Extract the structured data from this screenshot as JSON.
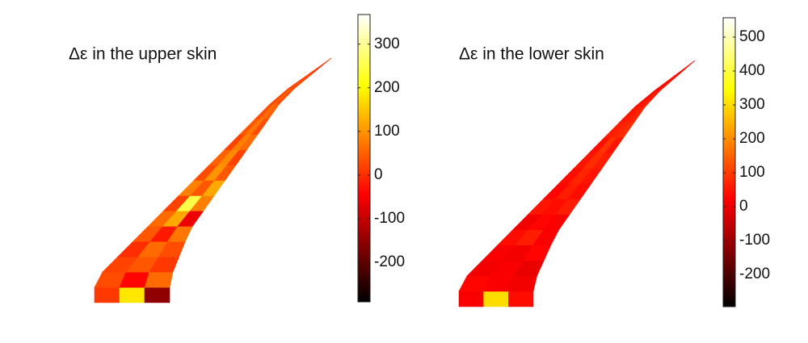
{
  "chart_data": [
    {
      "type": "heatmap",
      "title": "Δε in the upper skin",
      "colormap": "hot",
      "clim": [
        -291,
        368
      ],
      "ticks": [
        -200,
        -100,
        0,
        100,
        200,
        300
      ],
      "z": [
        [
          10,
          180,
          -150
        ],
        [
          30,
          -40,
          60
        ],
        [
          20,
          40,
          10
        ],
        [
          0,
          60,
          30
        ],
        [
          40,
          -20,
          70
        ],
        [
          60,
          120,
          -60
        ],
        [
          20,
          250,
          80
        ],
        [
          80,
          40,
          120
        ],
        [
          30,
          100,
          40
        ],
        [
          50,
          90,
          20
        ],
        [
          20,
          80,
          60
        ],
        [
          40,
          70,
          30
        ],
        [
          30,
          60,
          50
        ],
        [
          20,
          50,
          30
        ],
        [
          10,
          40,
          20
        ],
        [
          0,
          20,
          10
        ]
      ]
    },
    {
      "type": "heatmap",
      "title": "Δε in the lower skin",
      "colormap": "hot",
      "clim": [
        -295,
        557
      ],
      "ticks": [
        -200,
        -100,
        0,
        100,
        200,
        300,
        400,
        500
      ],
      "z": [
        [
          20,
          300,
          40
        ],
        [
          30,
          20,
          10
        ],
        [
          10,
          20,
          0
        ],
        [
          20,
          10,
          30
        ],
        [
          40,
          60,
          20
        ],
        [
          10,
          30,
          20
        ],
        [
          50,
          40,
          60
        ],
        [
          30,
          60,
          40
        ],
        [
          40,
          70,
          50
        ],
        [
          50,
          80,
          60
        ],
        [
          40,
          90,
          50
        ],
        [
          60,
          70,
          80
        ],
        [
          50,
          60,
          70
        ],
        [
          40,
          50,
          60
        ],
        [
          30,
          40,
          50
        ],
        [
          20,
          30,
          40
        ]
      ]
    }
  ]
}
